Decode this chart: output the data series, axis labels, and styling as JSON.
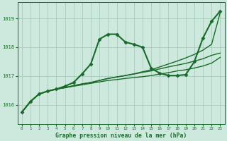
{
  "title": "Graphe pression niveau de la mer (hPa)",
  "bg_color": "#cde8dc",
  "grid_color": "#a8ccbe",
  "line_color": "#1a6b2a",
  "xlim": [
    -0.5,
    23.5
  ],
  "ylim": [
    1015.35,
    1019.55
  ],
  "yticks": [
    1016,
    1017,
    1018,
    1019
  ],
  "xticks": [
    0,
    1,
    2,
    3,
    4,
    5,
    6,
    7,
    8,
    9,
    10,
    11,
    12,
    13,
    14,
    15,
    16,
    17,
    18,
    19,
    20,
    21,
    22,
    23
  ],
  "series": [
    {
      "x": [
        0,
        1,
        2,
        3,
        4,
        5,
        6,
        7,
        8,
        9,
        10,
        11,
        12,
        13,
        14,
        15,
        16,
        17,
        18,
        19,
        20,
        21,
        22,
        23
      ],
      "y": [
        1015.75,
        1016.12,
        1016.38,
        1016.48,
        1016.55,
        1016.6,
        1016.65,
        1016.7,
        1016.75,
        1016.8,
        1016.85,
        1016.88,
        1016.92,
        1016.95,
        1016.98,
        1017.02,
        1017.07,
        1017.12,
        1017.18,
        1017.22,
        1017.28,
        1017.35,
        1017.45,
        1017.65
      ],
      "marker": null,
      "linewidth": 1.0
    },
    {
      "x": [
        0,
        1,
        2,
        3,
        4,
        5,
        6,
        7,
        8,
        9,
        10,
        11,
        12,
        13,
        14,
        15,
        16,
        17,
        18,
        19,
        20,
        21,
        22,
        23
      ],
      "y": [
        1015.75,
        1016.12,
        1016.38,
        1016.48,
        1016.55,
        1016.6,
        1016.67,
        1016.73,
        1016.78,
        1016.85,
        1016.92,
        1016.97,
        1017.02,
        1017.07,
        1017.13,
        1017.18,
        1017.25,
        1017.32,
        1017.38,
        1017.44,
        1017.52,
        1017.6,
        1017.72,
        1017.8
      ],
      "marker": null,
      "linewidth": 1.0
    },
    {
      "x": [
        0,
        1,
        2,
        3,
        4,
        5,
        6,
        7,
        8,
        9,
        10,
        11,
        12,
        13,
        14,
        15,
        16,
        17,
        18,
        19,
        20,
        21,
        22,
        23
      ],
      "y": [
        1015.75,
        1016.12,
        1016.38,
        1016.48,
        1016.55,
        1016.6,
        1016.67,
        1016.73,
        1016.78,
        1016.85,
        1016.92,
        1016.97,
        1017.02,
        1017.08,
        1017.15,
        1017.22,
        1017.32,
        1017.42,
        1017.52,
        1017.63,
        1017.75,
        1017.9,
        1018.1,
        1019.2
      ],
      "marker": null,
      "linewidth": 1.0
    },
    {
      "x": [
        0,
        1,
        2,
        3,
        4,
        5,
        6,
        7,
        8,
        9,
        10,
        11,
        12,
        13,
        14,
        15,
        16,
        17,
        18,
        19,
        20,
        21,
        22,
        23
      ],
      "y": [
        1015.75,
        1016.12,
        1016.38,
        1016.48,
        1016.55,
        1016.65,
        1016.78,
        1017.08,
        1017.42,
        1018.28,
        1018.45,
        1018.45,
        1018.18,
        1018.1,
        1018.0,
        1017.27,
        1017.1,
        1017.02,
        1017.02,
        1017.05,
        1017.5,
        1018.32,
        1018.9,
        1019.25
      ],
      "marker": "D",
      "linewidth": 1.5
    }
  ]
}
